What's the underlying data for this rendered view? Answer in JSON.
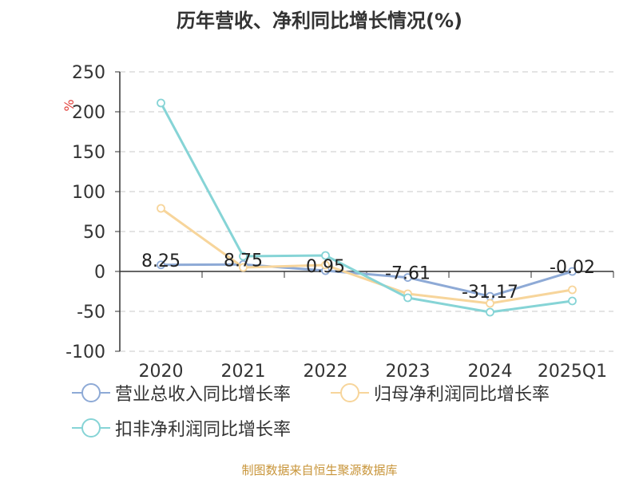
{
  "title": "历年营收、净利同比增长情况(%)",
  "unit": "%",
  "source": "制图数据来自恒生聚源数据库",
  "legend_labels": [
    "营业总收入同比增长率",
    "归母净利润同比增长率",
    "扣非净利润同比增长率"
  ],
  "chart_data": {
    "type": "line",
    "title": "历年营收、净利同比增长情况(%)",
    "xlabel": "",
    "ylabel": "%",
    "categories": [
      "2020",
      "2021",
      "2022",
      "2023",
      "2024",
      "2025Q1"
    ],
    "ylim": [
      -100,
      250
    ],
    "yticks": [
      250,
      200,
      150,
      100,
      50,
      0,
      -50,
      -100
    ],
    "grid": true,
    "legend_position": "bottom",
    "series": [
      {
        "name": "营业总收入同比增长率",
        "color": "#8eaad6",
        "values": [
          8.25,
          8.75,
          0.95,
          -7.61,
          -31.17,
          -0.02
        ],
        "labels": [
          "8.25",
          "8.75",
          "0.95",
          "-7.61",
          "-31.17",
          "-0.02"
        ]
      },
      {
        "name": "归母净利润同比增长率",
        "color": "#f7d59b",
        "values": [
          79,
          5,
          8,
          -28,
          -40,
          -23
        ]
      },
      {
        "name": "扣非净利润同比增长率",
        "color": "#86d4d6",
        "values": [
          211,
          19,
          20,
          -33,
          -51,
          -37
        ]
      }
    ]
  }
}
